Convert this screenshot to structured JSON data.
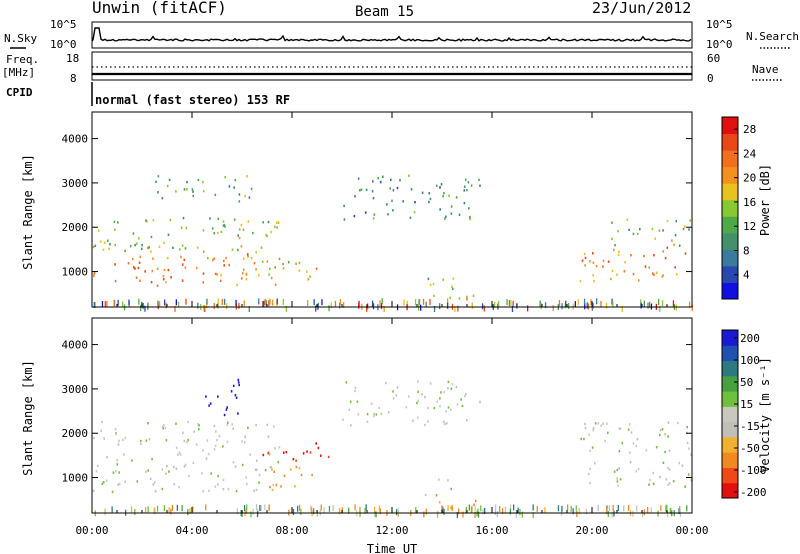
{
  "header": {
    "station": "Unwin (fitACF)",
    "beam": "Beam 15",
    "date": "23/Jun/2012"
  },
  "strips": {
    "nsky_label": "N.Sky",
    "nsearch_label": "N.Search",
    "noise_ticks": [
      "10^5",
      "10^0"
    ],
    "freq_label": "Freq.",
    "freq_unit": "[MHz]",
    "freq_ticks": [
      "18",
      "8"
    ],
    "nave_label": "Nave",
    "nave_ticks": [
      "60",
      "0"
    ],
    "cpid_label": "CPID",
    "cpid_value": "normal (fast stereo) 153 RF"
  },
  "colors": {
    "power_scale": [
      "#1010e0",
      "#2848b0",
      "#3a7a9a",
      "#449068",
      "#4fa84a",
      "#88c830",
      "#e8c020",
      "#f29020",
      "#f07020",
      "#e84818",
      "#e01010"
    ],
    "velocity_scale": [
      "#e01010",
      "#f04818",
      "#f28820",
      "#f2b030",
      "#c0c0b8",
      "#c8c8c0",
      "#70c040",
      "#48a040",
      "#2a7a80",
      "#2050b0",
      "#1a1ad0"
    ]
  },
  "chart_data": [
    {
      "type": "heatmap",
      "name": "power",
      "xlabel": "Time UT",
      "ylabel": "Slant Range [km]",
      "x_ticks": [
        "00:00",
        "04:00",
        "08:00",
        "12:00",
        "16:00",
        "20:00",
        "00:00"
      ],
      "y_ticks": [
        1000,
        2000,
        3000,
        4000
      ],
      "ylim": [
        200,
        4600
      ],
      "xlim_hours": [
        0,
        24
      ],
      "colorbar_label": "Power [dB]",
      "colorbar_ticks": [
        4,
        8,
        12,
        16,
        20,
        24,
        28
      ],
      "colorbar_range": [
        0,
        30
      ],
      "regions": [
        {
          "t": [
            0.0,
            7.5
          ],
          "r": [
            700,
            1600
          ],
          "value": 22
        },
        {
          "t": [
            0.0,
            7.5
          ],
          "r": [
            1500,
            2300
          ],
          "value": 14
        },
        {
          "t": [
            2.5,
            6.5
          ],
          "r": [
            2600,
            3200
          ],
          "value": 12
        },
        {
          "t": [
            7.0,
            9.0
          ],
          "r": [
            800,
            1300
          ],
          "value": 18
        },
        {
          "t": [
            10.0,
            15.5
          ],
          "r": [
            2200,
            3200
          ],
          "value": 8
        },
        {
          "t": [
            13.3,
            14.5
          ],
          "r": [
            600,
            1100
          ],
          "value": 16
        },
        {
          "t": [
            13.5,
            16.0
          ],
          "r": [
            300,
            500
          ],
          "value": 20
        },
        {
          "t": [
            19.5,
            24.0
          ],
          "r": [
            800,
            1600
          ],
          "value": 22
        },
        {
          "t": [
            20.5,
            24.0
          ],
          "r": [
            1600,
            2200
          ],
          "value": 14
        }
      ]
    },
    {
      "type": "heatmap",
      "name": "velocity",
      "xlabel": "Time UT",
      "ylabel": "Slant Range [km]",
      "x_ticks": [
        "00:00",
        "04:00",
        "08:00",
        "12:00",
        "16:00",
        "20:00",
        "00:00"
      ],
      "y_ticks": [
        1000,
        2000,
        3000,
        4000
      ],
      "ylim": [
        200,
        4600
      ],
      "xlim_hours": [
        0,
        24
      ],
      "colorbar_label": "Velocity [m s⁻¹]",
      "colorbar_ticks": [
        200,
        100,
        50,
        15,
        -15,
        -50,
        -100,
        -200
      ],
      "regions": [
        {
          "t": [
            0.0,
            7.5
          ],
          "r": [
            700,
            2300
          ],
          "value": 0
        },
        {
          "t": [
            4.5,
            6.0
          ],
          "r": [
            2400,
            3300
          ],
          "value": 200
        },
        {
          "t": [
            6.5,
            9.5
          ],
          "r": [
            1400,
            1800
          ],
          "value": -150
        },
        {
          "t": [
            7.0,
            9.0
          ],
          "r": [
            700,
            1300
          ],
          "value": -40
        },
        {
          "t": [
            10.0,
            15.5
          ],
          "r": [
            2200,
            3200
          ],
          "value": 0
        },
        {
          "t": [
            13.3,
            14.5
          ],
          "r": [
            600,
            1000
          ],
          "value": 0
        },
        {
          "t": [
            13.5,
            16.0
          ],
          "r": [
            300,
            500
          ],
          "value": -40
        },
        {
          "t": [
            19.5,
            24.0
          ],
          "r": [
            800,
            2300
          ],
          "value": 0
        }
      ]
    }
  ]
}
